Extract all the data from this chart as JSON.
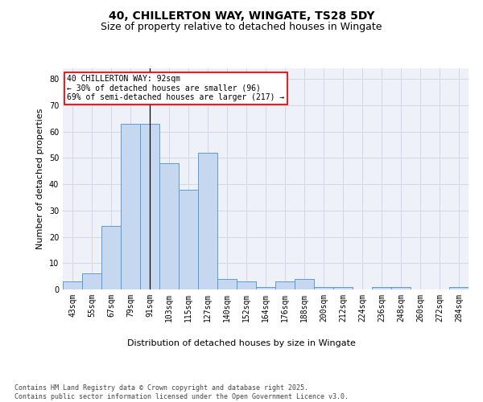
{
  "title_line1": "40, CHILLERTON WAY, WINGATE, TS28 5DY",
  "title_line2": "Size of property relative to detached houses in Wingate",
  "xlabel": "Distribution of detached houses by size in Wingate",
  "ylabel": "Number of detached properties",
  "categories": [
    "43sqm",
    "55sqm",
    "67sqm",
    "79sqm",
    "91sqm",
    "103sqm",
    "115sqm",
    "127sqm",
    "140sqm",
    "152sqm",
    "164sqm",
    "176sqm",
    "188sqm",
    "200sqm",
    "212sqm",
    "224sqm",
    "236sqm",
    "248sqm",
    "260sqm",
    "272sqm",
    "284sqm"
  ],
  "values": [
    3,
    6,
    24,
    63,
    63,
    48,
    38,
    52,
    4,
    3,
    1,
    3,
    4,
    1,
    1,
    0,
    1,
    1,
    0,
    0,
    1
  ],
  "bar_color": "#c5d8f0",
  "bar_edge_color": "#5b9bd5",
  "vline_x": 4.0,
  "annotation_text": "40 CHILLERTON WAY: 92sqm\n← 30% of detached houses are smaller (96)\n69% of semi-detached houses are larger (217) →",
  "annotation_box_color": "white",
  "annotation_box_edge_color": "red",
  "ylim": [
    0,
    84
  ],
  "yticks": [
    0,
    10,
    20,
    30,
    40,
    50,
    60,
    70,
    80
  ],
  "grid_color": "#d0d8e8",
  "background_color": "#eef2f8",
  "footer_text": "Contains HM Land Registry data © Crown copyright and database right 2025.\nContains public sector information licensed under the Open Government Licence v3.0.",
  "title_fontsize": 10,
  "subtitle_fontsize": 9,
  "axis_label_fontsize": 8,
  "tick_fontsize": 7,
  "annotation_fontsize": 7,
  "footer_fontsize": 6
}
